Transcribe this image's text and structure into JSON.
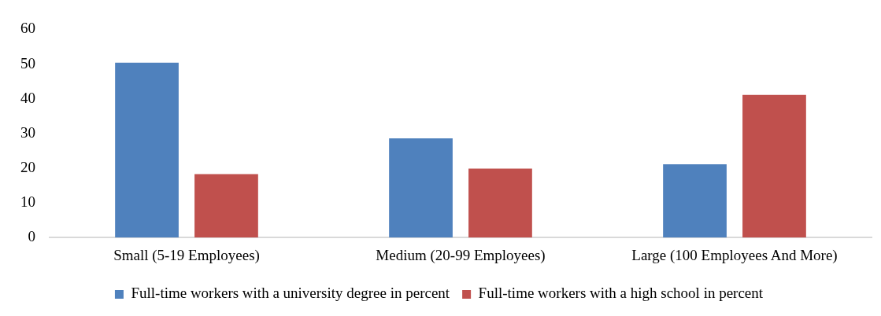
{
  "chart_data": {
    "type": "bar",
    "categories": [
      "Small (5-19 Employees)",
      "Medium (20-99 Employees)",
      "Large (100 Employees And More)"
    ],
    "series": [
      {
        "name": "Full-time workers with a university degree in percent",
        "color": "#4f81bd",
        "values": [
          50.4,
          28.6,
          21.1
        ]
      },
      {
        "name": "Full-time workers with a high school in percent",
        "color": "#c0504d",
        "values": [
          18.3,
          19.9,
          41.1
        ]
      }
    ],
    "ylim": [
      0,
      60
    ],
    "yticks": [
      0,
      10,
      20,
      30,
      40,
      50,
      60
    ],
    "grid": false,
    "legend": "bottom"
  }
}
